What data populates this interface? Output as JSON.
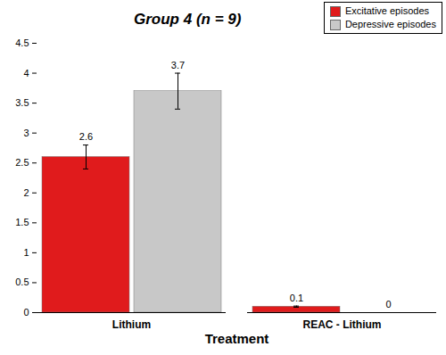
{
  "chart_data": {
    "type": "bar",
    "title": "Group 4 (n = 9)",
    "x_label": "Treatment",
    "categories": [
      "Lithium",
      "REAC - Lithium"
    ],
    "series": [
      {
        "name": "Excitative episodes",
        "color": "#e01b1c",
        "values": [
          2.6,
          0.1
        ],
        "errors": [
          0.2,
          0.01
        ]
      },
      {
        "name": "Depressive episodes",
        "color": "#c8c8c8",
        "values": [
          3.7,
          0
        ],
        "errors": [
          0.3,
          null
        ]
      }
    ],
    "ylim": [
      0,
      4.5
    ],
    "yticks": [
      0,
      0.5,
      1,
      1.5,
      2,
      2.5,
      3,
      3.5,
      4,
      4.5
    ],
    "data_labels": true,
    "legend": "top-right"
  }
}
